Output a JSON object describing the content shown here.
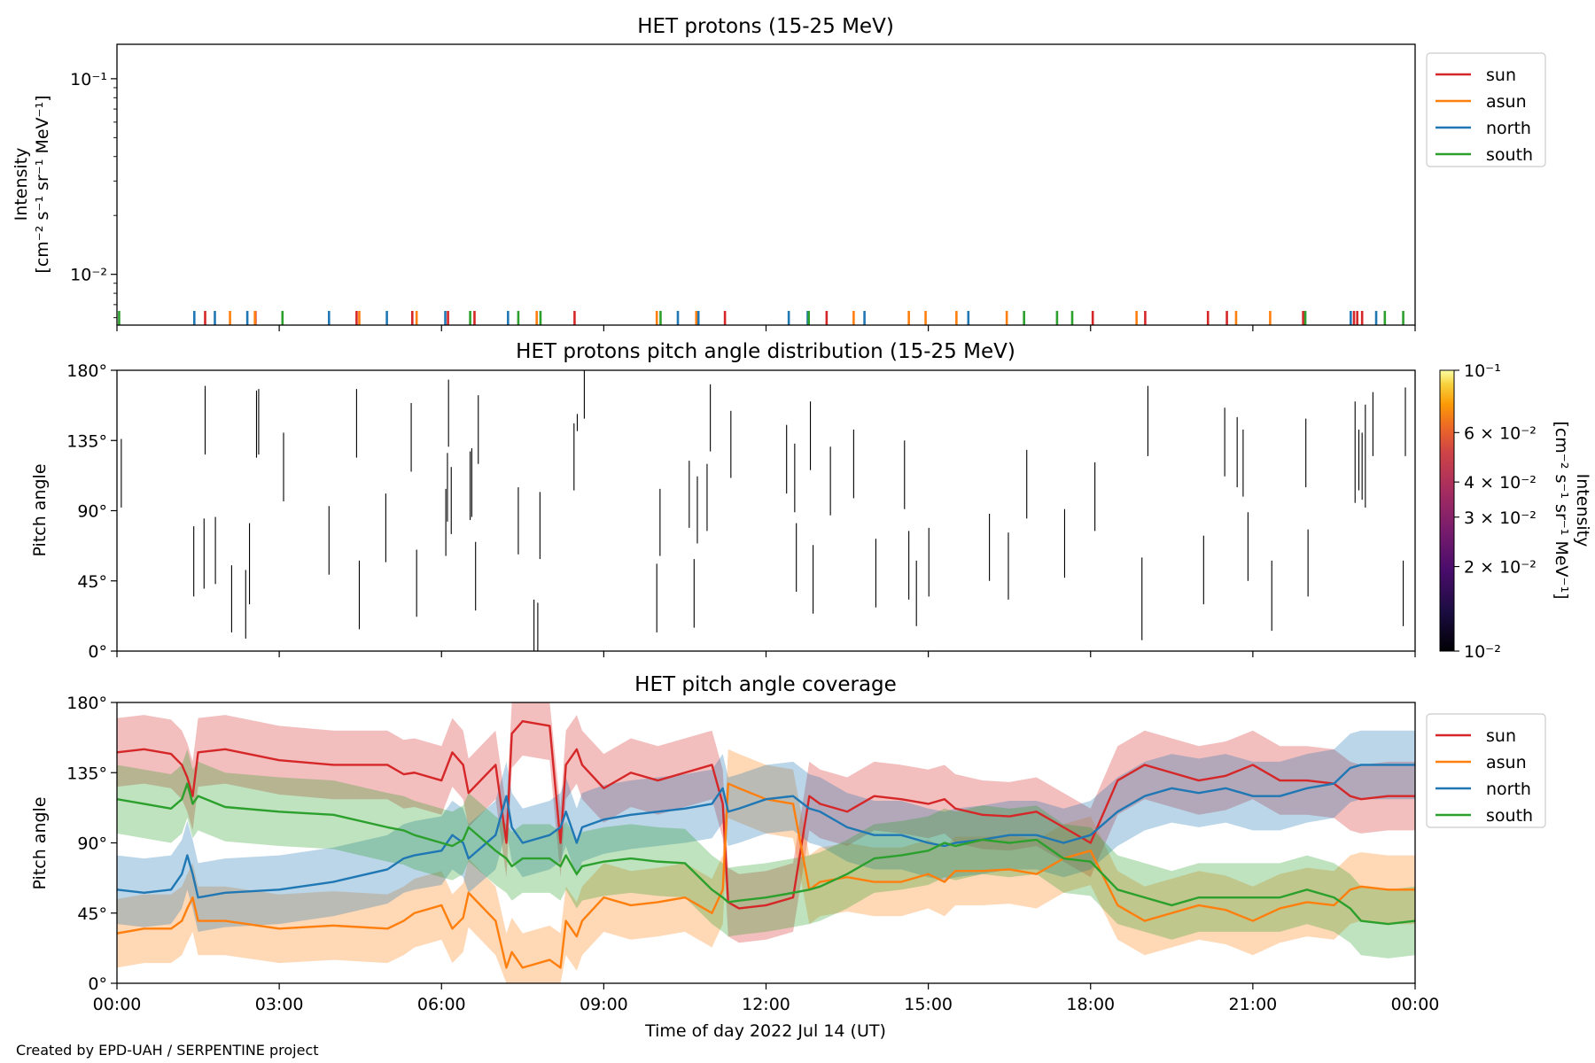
{
  "chart_data": [
    {
      "type": "line",
      "title": "HET protons (15-25 MeV)",
      "ylabel": [
        "Intensity",
        "[cm$^{-2}$ s$^{-1}$ sr$^{-1}$ MeV$^{-1}$]"
      ],
      "ylabel_lines": [
        "Intensity",
        "[cm⁻² s⁻¹ sr⁻¹ MeV⁻¹]"
      ],
      "yscale": "log",
      "ylim": [
        0.0055,
        0.15
      ],
      "yticks": [
        {
          "value": 0.1,
          "label": "10⁻¹"
        },
        {
          "value": 0.01,
          "label": "10⁻²"
        }
      ],
      "legend_position": "outside-top-right",
      "series": [
        {
          "name": "sun",
          "color": "#d62728",
          "x_hours": [
            1.63,
            2.56,
            4.43,
            5.46,
            6.12,
            6.61,
            8.46,
            11.24,
            13.12,
            18.04,
            19.01,
            20.17,
            20.52,
            21.93,
            22.87,
            22.93,
            23.02
          ]
        },
        {
          "name": "asun",
          "color": "#ff7f0e",
          "x_hours": [
            2.09,
            2.55,
            4.48,
            5.54,
            7.76,
            9.98,
            10.71,
            13.62,
            14.64,
            14.95,
            15.52,
            16.45,
            18.85,
            20.69,
            21.32
          ]
        },
        {
          "name": "north",
          "color": "#1f77b4",
          "x_hours": [
            1.43,
            1.81,
            2.41,
            3.92,
            4.99,
            6.07,
            7.23,
            10.37,
            10.75,
            12.42,
            12.77,
            13.82,
            15.74,
            22.81,
            23.28
          ]
        },
        {
          "name": "south",
          "color": "#2ca02c",
          "x_hours": [
            0.04,
            3.06,
            6.53,
            7.42,
            7.83,
            10.05,
            12.79,
            16.77,
            17.38,
            17.66,
            21.97,
            23.44,
            23.78
          ]
        }
      ]
    },
    {
      "type": "heatmap",
      "title": "HET protons pitch angle distribution (15-25 MeV)",
      "ylabel": "Pitch angle",
      "ylim": [
        0,
        180
      ],
      "yticks": [
        {
          "value": 180,
          "label": "180°"
        },
        {
          "value": 135,
          "label": "135°"
        },
        {
          "value": 90,
          "label": "90°"
        },
        {
          "value": 45,
          "label": "45°"
        },
        {
          "value": 0,
          "label": "0°"
        }
      ],
      "colorbar": {
        "label": [
          "Intensity",
          "[cm⁻² s⁻¹ sr⁻¹ MeV⁻¹]"
        ],
        "scale": "log",
        "range": [
          0.01,
          0.1
        ],
        "colormap": "inferno",
        "ticks": [
          {
            "value": 0.1,
            "label": "10⁻¹"
          },
          {
            "value": 0.06,
            "label": "6 × 10⁻²"
          },
          {
            "value": 0.04,
            "label": "4 × 10⁻²"
          },
          {
            "value": 0.03,
            "label": "3 × 10⁻²"
          },
          {
            "value": 0.02,
            "label": "2 × 10⁻²"
          },
          {
            "value": 0.01,
            "label": "10⁻²"
          }
        ]
      },
      "segments": [
        [
          0.08,
          92,
          136
        ],
        [
          1.42,
          35,
          80
        ],
        [
          1.61,
          40,
          85
        ],
        [
          1.63,
          126,
          170
        ],
        [
          1.82,
          43,
          86
        ],
        [
          2.12,
          12,
          55
        ],
        [
          2.38,
          8,
          52
        ],
        [
          2.45,
          30,
          82
        ],
        [
          2.58,
          124,
          167
        ],
        [
          2.62,
          126,
          168
        ],
        [
          3.08,
          96,
          140
        ],
        [
          3.92,
          49,
          93
        ],
        [
          4.43,
          124,
          168
        ],
        [
          4.48,
          14,
          58
        ],
        [
          4.97,
          57,
          101
        ],
        [
          5.44,
          115,
          159
        ],
        [
          5.54,
          22,
          65
        ],
        [
          6.08,
          61,
          104
        ],
        [
          6.11,
          83,
          127
        ],
        [
          6.13,
          131,
          174
        ],
        [
          6.18,
          75,
          118
        ],
        [
          6.53,
          84,
          128
        ],
        [
          6.56,
          86,
          130
        ],
        [
          6.63,
          26,
          70
        ],
        [
          6.68,
          120,
          164
        ],
        [
          7.42,
          62,
          105
        ],
        [
          7.71,
          0,
          33
        ],
        [
          7.78,
          0,
          31
        ],
        [
          7.82,
          59,
          102
        ],
        [
          8.45,
          103,
          146
        ],
        [
          8.51,
          141,
          152
        ],
        [
          8.64,
          149,
          180
        ],
        [
          9.98,
          12,
          56
        ],
        [
          10.04,
          61,
          104
        ],
        [
          10.58,
          79,
          122
        ],
        [
          10.67,
          15,
          59
        ],
        [
          10.73,
          69,
          112
        ],
        [
          10.91,
          77,
          120
        ],
        [
          10.97,
          128,
          171
        ],
        [
          11.35,
          111,
          154
        ],
        [
          12.38,
          101,
          145
        ],
        [
          12.53,
          89,
          133
        ],
        [
          12.56,
          38,
          82
        ],
        [
          12.82,
          116,
          160
        ],
        [
          12.87,
          24,
          68
        ],
        [
          13.19,
          87,
          131
        ],
        [
          13.62,
          98,
          142
        ],
        [
          14.03,
          28,
          72
        ],
        [
          14.56,
          91,
          135
        ],
        [
          14.64,
          33,
          77
        ],
        [
          14.78,
          16,
          58
        ],
        [
          15.01,
          35,
          79
        ],
        [
          16.13,
          45,
          88
        ],
        [
          16.48,
          33,
          76
        ],
        [
          16.82,
          85,
          129
        ],
        [
          17.52,
          47,
          91
        ],
        [
          18.08,
          77,
          121
        ],
        [
          18.95,
          7,
          60
        ],
        [
          19.06,
          125,
          170
        ],
        [
          20.09,
          30,
          74
        ],
        [
          20.48,
          112,
          156
        ],
        [
          20.71,
          105,
          150
        ],
        [
          20.82,
          99,
          142
        ],
        [
          20.91,
          45,
          89
        ],
        [
          21.35,
          13,
          58
        ],
        [
          21.98,
          105,
          149
        ],
        [
          22.02,
          35,
          78
        ],
        [
          22.89,
          95,
          160
        ],
        [
          22.96,
          103,
          142
        ],
        [
          23.02,
          97,
          140
        ],
        [
          23.08,
          92,
          158
        ],
        [
          23.22,
          125,
          166
        ],
        [
          23.78,
          16,
          58
        ],
        [
          23.82,
          125,
          169
        ]
      ]
    },
    {
      "type": "area",
      "title": "HET pitch angle coverage",
      "ylabel": "Pitch angle",
      "xlabel": "Time of day 2022 Jul 14 (UT)",
      "xlim_hours": [
        0,
        24
      ],
      "xticks": [
        "00:00",
        "03:00",
        "06:00",
        "09:00",
        "12:00",
        "15:00",
        "18:00",
        "21:00",
        "00:00"
      ],
      "ylim": [
        0,
        180
      ],
      "yticks": [
        {
          "value": 180,
          "label": "180°"
        },
        {
          "value": 135,
          "label": "135°"
        },
        {
          "value": 90,
          "label": "90°"
        },
        {
          "value": 45,
          "label": "45°"
        },
        {
          "value": 0,
          "label": "0°"
        }
      ],
      "legend_position": "outside-top-right",
      "band_halfwidth_deg": 22,
      "x_hours": [
        0.0,
        0.5,
        1.0,
        1.2,
        1.3,
        1.4,
        1.5,
        2.0,
        3.0,
        4.0,
        5.0,
        5.3,
        5.5,
        6.0,
        6.2,
        6.4,
        6.5,
        7.0,
        7.2,
        7.3,
        7.5,
        8.0,
        8.2,
        8.3,
        8.5,
        8.6,
        9.0,
        9.5,
        10.0,
        10.5,
        11.0,
        11.2,
        11.3,
        11.5,
        12.0,
        12.5,
        12.8,
        13.0,
        13.5,
        14.0,
        14.5,
        15.0,
        15.3,
        15.5,
        16.0,
        16.5,
        17.0,
        17.5,
        18.0,
        18.5,
        19.0,
        19.5,
        20.0,
        20.5,
        21.0,
        21.5,
        22.0,
        22.5,
        22.8,
        23.0,
        23.5,
        24.0
      ],
      "series": [
        {
          "name": "sun",
          "color": "#d62728",
          "values": [
            148,
            150,
            147,
            140,
            132,
            120,
            148,
            150,
            143,
            140,
            140,
            134,
            135,
            130,
            148,
            140,
            122,
            140,
            90,
            160,
            168,
            165,
            90,
            140,
            150,
            140,
            125,
            135,
            130,
            135,
            140,
            115,
            52,
            48,
            50,
            55,
            120,
            115,
            110,
            120,
            118,
            115,
            118,
            112,
            108,
            107,
            110,
            100,
            90,
            130,
            140,
            135,
            130,
            133,
            140,
            130,
            130,
            128,
            120,
            118,
            120,
            120
          ]
        },
        {
          "name": "asun",
          "color": "#ff7f0e",
          "values": [
            32,
            35,
            35,
            40,
            48,
            55,
            40,
            40,
            35,
            37,
            35,
            40,
            45,
            50,
            35,
            42,
            58,
            40,
            10,
            20,
            10,
            15,
            10,
            40,
            30,
            40,
            55,
            50,
            52,
            55,
            45,
            60,
            128,
            125,
            118,
            115,
            60,
            65,
            68,
            65,
            65,
            70,
            65,
            72,
            72,
            73,
            70,
            80,
            85,
            50,
            40,
            45,
            50,
            47,
            40,
            48,
            52,
            50,
            60,
            62,
            60,
            60
          ]
        },
        {
          "name": "north",
          "color": "#1f77b4",
          "values": [
            60,
            58,
            60,
            70,
            82,
            70,
            55,
            58,
            60,
            65,
            73,
            80,
            82,
            85,
            95,
            90,
            80,
            95,
            120,
            100,
            90,
            95,
            100,
            110,
            90,
            100,
            105,
            108,
            110,
            112,
            115,
            125,
            110,
            112,
            118,
            120,
            112,
            110,
            100,
            95,
            95,
            90,
            88,
            90,
            92,
            95,
            95,
            90,
            95,
            110,
            120,
            125,
            122,
            125,
            120,
            120,
            125,
            128,
            138,
            140,
            140,
            140
          ]
        },
        {
          "name": "south",
          "color": "#2ca02c",
          "values": [
            118,
            115,
            112,
            118,
            128,
            115,
            120,
            113,
            110,
            108,
            100,
            98,
            95,
            90,
            88,
            92,
            100,
            85,
            80,
            75,
            80,
            80,
            75,
            82,
            70,
            75,
            78,
            80,
            78,
            77,
            60,
            55,
            52,
            53,
            55,
            58,
            60,
            62,
            70,
            80,
            82,
            85,
            90,
            88,
            92,
            90,
            92,
            80,
            78,
            60,
            55,
            50,
            55,
            55,
            55,
            55,
            60,
            55,
            48,
            40,
            38,
            40
          ]
        }
      ]
    }
  ],
  "credit": "Created by EPD-UAH / SERPENTINE project"
}
